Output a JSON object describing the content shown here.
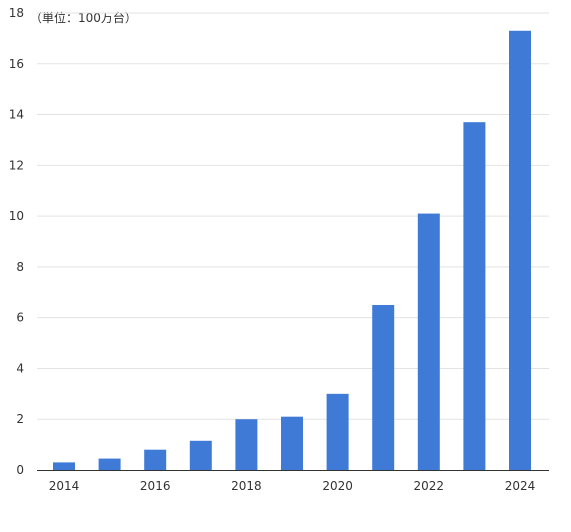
{
  "chart_data": {
    "type": "bar",
    "unit_label": "（単位：100万台）",
    "categories": [
      "2014",
      "2015",
      "2016",
      "2017",
      "2018",
      "2019",
      "2020",
      "2021",
      "2022",
      "2023",
      "2024"
    ],
    "values": [
      0.3,
      0.45,
      0.8,
      1.15,
      2.0,
      2.1,
      3.0,
      6.5,
      10.1,
      13.7,
      17.3
    ],
    "x_tick_labels": [
      "2014",
      "2016",
      "2018",
      "2020",
      "2022",
      "2024"
    ],
    "y_ticks": [
      0,
      2,
      4,
      6,
      8,
      10,
      12,
      14,
      16,
      18
    ],
    "ylim": [
      0,
      18
    ],
    "grid": true,
    "legend": "none",
    "bar_color": "#3f7bd6",
    "grid_color": "#e3e3e3",
    "axis_color": "#333333"
  }
}
